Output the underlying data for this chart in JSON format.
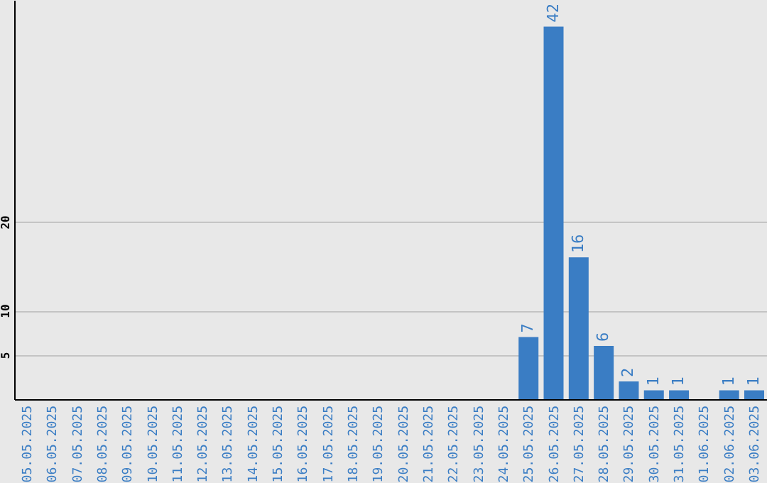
{
  "chart_data": {
    "type": "bar",
    "categories": [
      "05.05.2025",
      "06.05.2025",
      "07.05.2025",
      "08.05.2025",
      "09.05.2025",
      "10.05.2025",
      "11.05.2025",
      "12.05.2025",
      "13.05.2025",
      "14.05.2025",
      "15.05.2025",
      "16.05.2025",
      "17.05.2025",
      "18.05.2025",
      "19.05.2025",
      "20.05.2025",
      "21.05.2025",
      "22.05.2025",
      "23.05.2025",
      "24.05.2025",
      "25.05.2025",
      "26.05.2025",
      "27.05.2025",
      "28.05.2025",
      "29.05.2025",
      "30.05.2025",
      "31.05.2025",
      "01.06.2025",
      "02.06.2025",
      "03.06.2025"
    ],
    "values": [
      0,
      0,
      0,
      0,
      0,
      0,
      0,
      0,
      0,
      0,
      0,
      0,
      0,
      0,
      0,
      0,
      0,
      0,
      0,
      0,
      7,
      42,
      16,
      6,
      2,
      1,
      1,
      0,
      1,
      1
    ],
    "value_labels": [
      null,
      null,
      null,
      null,
      null,
      null,
      null,
      null,
      null,
      null,
      null,
      null,
      null,
      null,
      null,
      null,
      null,
      null,
      null,
      null,
      "7",
      "42",
      "16",
      "6",
      "2",
      "1",
      "1",
      null,
      "1",
      "1"
    ],
    "color": "#3a7dc4",
    "ylim": [
      0,
      45
    ],
    "yticks": [
      5,
      10,
      20
    ],
    "grid": "y"
  }
}
